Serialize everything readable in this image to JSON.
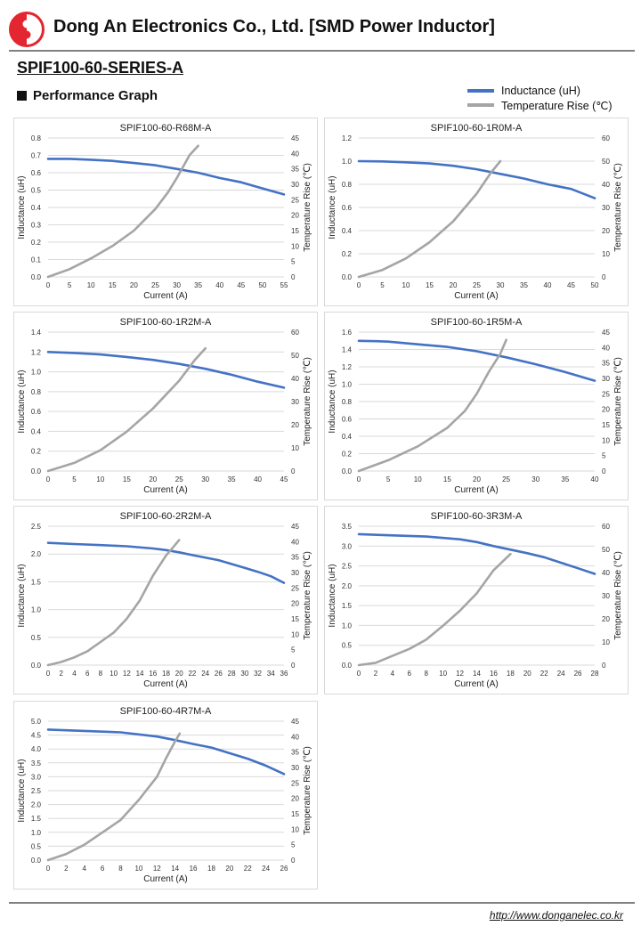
{
  "header": {
    "company_title": "Dong An Electronics Co., Ltd. [SMD Power Inductor]",
    "series_title": "SPIF100-60-SERIES-A",
    "section_title": "Performance Graph",
    "logo_color": "#e3262f"
  },
  "legend": {
    "inductance": {
      "label": "Inductance (uH)",
      "color": "#4472c4"
    },
    "temperature": {
      "label": "Temperature Rise (℃)",
      "color": "#a5a5a5"
    }
  },
  "footer": {
    "url": "http://www.donganelec.co.kr"
  },
  "chart_data": [
    {
      "type": "line",
      "title": "SPIF100-60-R68M-A",
      "xlabel": "Current (A)",
      "ylabel": "Inductance (uH)",
      "y2label": "Temperature Rise (℃)",
      "xlim": [
        0,
        55
      ],
      "xticks": [
        0,
        5,
        10,
        15,
        20,
        25,
        30,
        35,
        40,
        45,
        50,
        55
      ],
      "ylim": [
        0,
        0.8
      ],
      "yticks": [
        "0.0",
        "0.1",
        "0.2",
        "0.3",
        "0.4",
        "0.5",
        "0.6",
        "0.7",
        "0.8"
      ],
      "y2lim": [
        0,
        45
      ],
      "y2ticks": [
        "0",
        "5",
        "10",
        "15",
        "20",
        "25",
        "30",
        "35",
        "40",
        "45"
      ],
      "series": [
        {
          "name": "Inductance (uH)",
          "axis": "left",
          "x": [
            0,
            3,
            5,
            10,
            15,
            20,
            25,
            30,
            35,
            40,
            45,
            50,
            55
          ],
          "y": [
            0.68,
            0.68,
            0.68,
            0.675,
            0.668,
            0.656,
            0.643,
            0.622,
            0.6,
            0.57,
            0.545,
            0.51,
            0.475
          ]
        },
        {
          "name": "Temperature Rise (℃)",
          "axis": "right",
          "x": [
            0,
            5,
            10,
            15,
            20,
            25,
            28,
            30,
            32,
            33,
            35
          ],
          "y": [
            0,
            2.5,
            6,
            10,
            15,
            22,
            27.5,
            32,
            37,
            39.5,
            42.5
          ]
        }
      ]
    },
    {
      "type": "line",
      "title": "SPIF100-60-1R0M-A",
      "xlabel": "Current (A)",
      "ylabel": "Inductance (uH)",
      "y2label": "Temperature Rise (℃)",
      "xlim": [
        0,
        50
      ],
      "xticks": [
        0,
        5,
        10,
        15,
        20,
        25,
        30,
        35,
        40,
        45,
        50
      ],
      "ylim": [
        0,
        1.2
      ],
      "yticks": [
        "0.0",
        "0.2",
        "0.4",
        "0.6",
        "0.8",
        "1.0",
        "1.2"
      ],
      "y2lim": [
        0,
        60
      ],
      "y2ticks": [
        "0",
        "10",
        "20",
        "30",
        "40",
        "50",
        "60"
      ],
      "series": [
        {
          "name": "Inductance (uH)",
          "axis": "left",
          "x": [
            0,
            5,
            10,
            15,
            20,
            25,
            30,
            35,
            40,
            45,
            50
          ],
          "y": [
            1.0,
            0.998,
            0.99,
            0.98,
            0.96,
            0.93,
            0.89,
            0.85,
            0.8,
            0.76,
            0.68
          ]
        },
        {
          "name": "Temperature Rise (℃)",
          "axis": "right",
          "x": [
            0,
            5,
            10,
            15,
            20,
            25,
            28,
            30
          ],
          "y": [
            0,
            3,
            8,
            15,
            24,
            36,
            45,
            50
          ]
        }
      ]
    },
    {
      "type": "line",
      "title": "SPIF100-60-1R2M-A",
      "xlabel": "Current (A)",
      "ylabel": "Inductance (uH)",
      "y2label": "Temperature Rise (℃)",
      "xlim": [
        0,
        45
      ],
      "xticks": [
        0,
        5,
        10,
        15,
        20,
        25,
        30,
        35,
        40,
        45
      ],
      "ylim": [
        0,
        1.4
      ],
      "yticks": [
        "0.0",
        "0.2",
        "0.4",
        "0.6",
        "0.8",
        "1.0",
        "1.2",
        "1.4"
      ],
      "y2lim": [
        0,
        60
      ],
      "y2ticks": [
        "0",
        "10",
        "20",
        "30",
        "40",
        "50",
        "60"
      ],
      "series": [
        {
          "name": "Inductance (uH)",
          "axis": "left",
          "x": [
            0,
            5,
            10,
            15,
            20,
            25,
            30,
            35,
            40,
            45
          ],
          "y": [
            1.2,
            1.19,
            1.175,
            1.15,
            1.12,
            1.08,
            1.03,
            0.97,
            0.9,
            0.84
          ]
        },
        {
          "name": "Temperature Rise (℃)",
          "axis": "right",
          "x": [
            0,
            5,
            10,
            15,
            20,
            25,
            28,
            30
          ],
          "y": [
            0,
            3.5,
            9,
            17,
            27,
            39,
            48,
            53
          ]
        }
      ]
    },
    {
      "type": "line",
      "title": "SPIF100-60-1R5M-A",
      "xlabel": "Current (A)",
      "ylabel": "Inductance (uH)",
      "y2label": "Temperature Rise (℃)",
      "xlim": [
        0,
        40
      ],
      "xticks": [
        0,
        5,
        10,
        15,
        20,
        25,
        30,
        35,
        40
      ],
      "ylim": [
        0,
        1.6
      ],
      "yticks": [
        "0.0",
        "0.2",
        "0.4",
        "0.6",
        "0.8",
        "1.0",
        "1.2",
        "1.4",
        "1.6"
      ],
      "y2lim": [
        0,
        45
      ],
      "y2ticks": [
        "0",
        "5",
        "10",
        "15",
        "20",
        "25",
        "30",
        "35",
        "40",
        "45"
      ],
      "series": [
        {
          "name": "Inductance (uH)",
          "axis": "left",
          "x": [
            0,
            3,
            5,
            10,
            15,
            20,
            25,
            30,
            35,
            40
          ],
          "y": [
            1.5,
            1.495,
            1.49,
            1.46,
            1.43,
            1.38,
            1.31,
            1.23,
            1.14,
            1.04
          ]
        },
        {
          "name": "Temperature Rise (℃)",
          "axis": "right",
          "x": [
            0,
            5,
            10,
            15,
            18,
            20,
            22,
            24,
            25
          ],
          "y": [
            0,
            3.5,
            8,
            14,
            19.5,
            25,
            32,
            38,
            42.5
          ]
        }
      ]
    },
    {
      "type": "line",
      "title": "SPIF100-60-2R2M-A",
      "xlabel": "Current (A)",
      "ylabel": "Inductance (uH)",
      "y2label": "Temperature Rise (℃)",
      "xlim": [
        0,
        36
      ],
      "xticks": [
        0,
        2,
        4,
        6,
        8,
        10,
        12,
        14,
        16,
        18,
        20,
        22,
        24,
        26,
        28,
        30,
        32,
        34,
        36
      ],
      "ylim": [
        0,
        2.5
      ],
      "yticks": [
        "0.0",
        "0.5",
        "1.0",
        "1.5",
        "2.0",
        "2.5"
      ],
      "y2lim": [
        0,
        45
      ],
      "y2ticks": [
        "0",
        "5",
        "10",
        "15",
        "20",
        "25",
        "30",
        "35",
        "40",
        "45"
      ],
      "series": [
        {
          "name": "Inductance (uH)",
          "axis": "left",
          "x": [
            0,
            4,
            8,
            12,
            16,
            18,
            20,
            22,
            26,
            30,
            32,
            34,
            36
          ],
          "y": [
            2.2,
            2.18,
            2.16,
            2.14,
            2.1,
            2.07,
            2.03,
            1.98,
            1.89,
            1.75,
            1.68,
            1.6,
            1.48
          ]
        },
        {
          "name": "Temperature Rise (℃)",
          "axis": "right",
          "x": [
            0,
            2,
            4,
            6,
            8,
            10,
            12,
            14,
            16,
            18,
            19,
            20
          ],
          "y": [
            0,
            1,
            2.5,
            4.5,
            7.5,
            10.5,
            15,
            21,
            29,
            35.5,
            38,
            40.5
          ]
        }
      ]
    },
    {
      "type": "line",
      "title": "SPIF100-60-3R3M-A",
      "xlabel": "Current (A)",
      "ylabel": "Inductance (uH)",
      "y2label": "Temperature Rise (℃)",
      "xlim": [
        0,
        28
      ],
      "xticks": [
        0,
        2,
        4,
        6,
        8,
        10,
        12,
        14,
        16,
        18,
        20,
        22,
        24,
        26,
        28
      ],
      "ylim": [
        0,
        3.5
      ],
      "yticks": [
        "0.0",
        "0.5",
        "1.0",
        "1.5",
        "2.0",
        "2.5",
        "3.0",
        "3.5"
      ],
      "y2lim": [
        0,
        60
      ],
      "y2ticks": [
        "0",
        "10",
        "20",
        "30",
        "40",
        "50",
        "60"
      ],
      "series": [
        {
          "name": "Inductance (uH)",
          "axis": "left",
          "x": [
            0,
            4,
            8,
            12,
            14,
            16,
            18,
            20,
            22,
            24,
            26,
            28
          ],
          "y": [
            3.3,
            3.27,
            3.24,
            3.17,
            3.1,
            3.0,
            2.91,
            2.82,
            2.72,
            2.58,
            2.44,
            2.3
          ]
        },
        {
          "name": "Temperature Rise (℃)",
          "axis": "right",
          "x": [
            0,
            2,
            4,
            6,
            8,
            10,
            12,
            14,
            16,
            18
          ],
          "y": [
            0,
            1,
            4,
            7,
            11,
            17,
            23.5,
            31,
            41,
            48
          ]
        }
      ]
    },
    {
      "type": "line",
      "title": "SPIF100-60-4R7M-A",
      "xlabel": "Current (A)",
      "ylabel": "Inductance (uH)",
      "y2label": "Temperature Rise (℃)",
      "xlim": [
        0,
        26
      ],
      "xticks": [
        0,
        2,
        4,
        6,
        8,
        10,
        12,
        14,
        16,
        18,
        20,
        22,
        24,
        26
      ],
      "ylim": [
        0,
        5.0
      ],
      "yticks": [
        "0.0",
        "0.5",
        "1.0",
        "1.5",
        "2.0",
        "2.5",
        "3.0",
        "3.5",
        "4.0",
        "4.5",
        "5.0"
      ],
      "y2lim": [
        0,
        45
      ],
      "y2ticks": [
        "0",
        "5",
        "10",
        "15",
        "20",
        "25",
        "30",
        "35",
        "40",
        "45"
      ],
      "series": [
        {
          "name": "Inductance (uH)",
          "axis": "left",
          "x": [
            0,
            4,
            8,
            12,
            14,
            16,
            18,
            20,
            22,
            24,
            26
          ],
          "y": [
            4.7,
            4.65,
            4.6,
            4.45,
            4.32,
            4.18,
            4.05,
            3.85,
            3.65,
            3.4,
            3.1
          ]
        },
        {
          "name": "Temperature Rise (℃)",
          "axis": "right",
          "x": [
            0,
            2,
            4,
            6,
            8,
            10,
            12,
            13,
            14,
            14.5
          ],
          "y": [
            0,
            2,
            5,
            9,
            13,
            19.5,
            27,
            33,
            38.5,
            41
          ]
        }
      ]
    }
  ]
}
